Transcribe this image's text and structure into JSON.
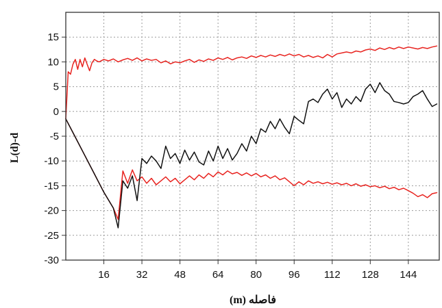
{
  "chart_data": {
    "type": "line",
    "title": "",
    "xlabel": "فاصله (m)",
    "ylabel": "L(d)-d",
    "xlim": [
      0,
      157
    ],
    "ylim": [
      -30,
      20
    ],
    "xticks": [
      16,
      32,
      48,
      64,
      80,
      96,
      112,
      128,
      144
    ],
    "yticks": [
      -30,
      -25,
      -20,
      -15,
      -10,
      -5,
      0,
      5,
      10,
      15
    ],
    "grid": true,
    "legend": "none",
    "series": [
      {
        "color": "#e8231f",
        "x": [
          0,
          1,
          2,
          3,
          4,
          5,
          6,
          7,
          8,
          9,
          10,
          11,
          12,
          13,
          14,
          16,
          18,
          20,
          22,
          24,
          26,
          28,
          30,
          32,
          34,
          36,
          38,
          40,
          42,
          44,
          46,
          48,
          50,
          52,
          54,
          56,
          58,
          60,
          62,
          64,
          66,
          68,
          70,
          72,
          74,
          76,
          78,
          80,
          82,
          84,
          86,
          88,
          90,
          92,
          94,
          96,
          98,
          100,
          102,
          104,
          106,
          108,
          110,
          112,
          114,
          116,
          118,
          120,
          122,
          124,
          126,
          128,
          130,
          132,
          134,
          136,
          138,
          140,
          142,
          144,
          146,
          148,
          150,
          152,
          154,
          156
        ],
        "values": [
          -1.5,
          8.0,
          7.5,
          9.5,
          10.5,
          8.5,
          10.5,
          9.0,
          10.8,
          9.5,
          8.2,
          9.8,
          10.5,
          10.2,
          10.0,
          10.5,
          10.2,
          10.6,
          10.0,
          10.4,
          10.7,
          10.3,
          10.8,
          10.2,
          10.6,
          10.3,
          10.5,
          9.8,
          10.2,
          9.6,
          10.0,
          9.8,
          10.2,
          10.5,
          9.9,
          10.4,
          10.1,
          10.6,
          10.3,
          10.8,
          10.5,
          10.9,
          10.4,
          10.8,
          11.0,
          10.7,
          11.2,
          10.9,
          11.3,
          11.0,
          11.4,
          11.1,
          11.5,
          11.2,
          11.6,
          11.2,
          11.5,
          11.0,
          11.3,
          10.9,
          11.2,
          10.8,
          11.5,
          11.0,
          11.6,
          11.8,
          12.0,
          11.8,
          12.2,
          12.0,
          12.4,
          12.6,
          12.3,
          12.8,
          12.5,
          12.9,
          12.6,
          13.0,
          12.7,
          13.0,
          12.8,
          12.6,
          12.9,
          12.7,
          13.0,
          13.2
        ]
      },
      {
        "color": "#e8231f",
        "x": [
          0,
          4,
          8,
          12,
          16,
          20,
          22,
          24,
          26,
          28,
          30,
          32,
          34,
          36,
          38,
          40,
          42,
          44,
          46,
          48,
          50,
          52,
          54,
          56,
          58,
          60,
          62,
          64,
          66,
          68,
          70,
          72,
          74,
          76,
          78,
          80,
          82,
          84,
          86,
          88,
          90,
          92,
          94,
          96,
          98,
          100,
          102,
          104,
          106,
          108,
          110,
          112,
          114,
          116,
          118,
          120,
          122,
          124,
          126,
          128,
          130,
          132,
          134,
          136,
          138,
          140,
          142,
          144,
          146,
          148,
          150,
          152,
          154,
          156
        ],
        "values": [
          -1.5,
          -5.2,
          -8.9,
          -12.6,
          -16.3,
          -19.5,
          -21.8,
          -12.0,
          -14.5,
          -11.8,
          -14.0,
          -13.2,
          -14.5,
          -13.5,
          -14.8,
          -14.0,
          -13.2,
          -14.2,
          -13.5,
          -14.6,
          -13.8,
          -13.0,
          -13.8,
          -12.8,
          -13.5,
          -12.5,
          -13.2,
          -12.2,
          -12.8,
          -12.0,
          -12.6,
          -12.3,
          -12.9,
          -12.4,
          -13.0,
          -12.5,
          -13.2,
          -12.8,
          -13.5,
          -13.0,
          -13.8,
          -13.4,
          -14.2,
          -15.0,
          -14.2,
          -14.8,
          -14.0,
          -14.5,
          -14.2,
          -14.6,
          -14.3,
          -14.7,
          -14.4,
          -14.8,
          -14.5,
          -15.0,
          -14.6,
          -15.1,
          -14.8,
          -15.2,
          -15.0,
          -15.4,
          -15.1,
          -15.6,
          -15.3,
          -15.8,
          -15.5,
          -16.0,
          -16.5,
          -17.2,
          -16.8,
          -17.4,
          -16.6,
          -16.4
        ]
      },
      {
        "color": "#111111",
        "x": [
          0,
          4,
          8,
          12,
          16,
          20,
          22,
          24,
          26,
          28,
          30,
          32,
          34,
          36,
          38,
          40,
          42,
          44,
          46,
          48,
          50,
          52,
          54,
          56,
          58,
          60,
          62,
          64,
          66,
          68,
          70,
          72,
          74,
          76,
          78,
          80,
          82,
          84,
          86,
          88,
          90,
          92,
          94,
          96,
          98,
          100,
          102,
          104,
          106,
          108,
          110,
          112,
          114,
          116,
          118,
          120,
          122,
          124,
          126,
          128,
          130,
          132,
          134,
          136,
          138,
          140,
          142,
          144,
          146,
          148,
          150,
          152,
          154,
          156
        ],
        "values": [
          -1.5,
          -5.2,
          -8.9,
          -12.6,
          -16.3,
          -19.5,
          -23.5,
          -14.0,
          -15.5,
          -13.0,
          -18.0,
          -9.5,
          -10.5,
          -9.0,
          -10.0,
          -11.5,
          -7.0,
          -9.5,
          -8.5,
          -10.5,
          -7.8,
          -9.8,
          -8.2,
          -10.2,
          -10.8,
          -8.0,
          -10.0,
          -7.0,
          -9.5,
          -7.5,
          -9.8,
          -8.5,
          -6.5,
          -8.0,
          -5.0,
          -6.5,
          -3.5,
          -4.2,
          -2.0,
          -3.5,
          -1.5,
          -3.2,
          -4.5,
          -1.0,
          -1.8,
          -2.5,
          2.0,
          2.5,
          1.8,
          3.5,
          4.5,
          2.5,
          3.8,
          0.8,
          2.5,
          1.5,
          3.0,
          2.0,
          4.5,
          5.5,
          3.8,
          5.8,
          4.2,
          3.5,
          2.0,
          1.8,
          1.5,
          1.8,
          3.0,
          3.5,
          4.2,
          2.5,
          1.0,
          1.5
        ]
      }
    ]
  }
}
